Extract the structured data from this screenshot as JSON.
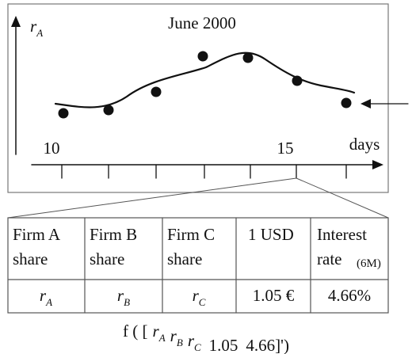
{
  "chart": {
    "title": "June 2000",
    "y_label": {
      "symbol": "r",
      "subscript": "A"
    },
    "x_labels": [
      "10",
      "15"
    ],
    "x_unit": "days"
  },
  "table": {
    "header": [
      [
        "Firm A",
        "share"
      ],
      [
        "Firm B",
        "share"
      ],
      [
        "Firm C",
        "share"
      ],
      [
        "1 USD"
      ],
      [
        "Interest",
        "rate",
        "(6M)"
      ]
    ],
    "row": [
      {
        "symbol": "r",
        "subscript": "A"
      },
      {
        "symbol": "r",
        "subscript": "B"
      },
      {
        "symbol": "r",
        "subscript": "C"
      },
      "1.05 €",
      "4.66%"
    ]
  },
  "formula": {
    "open": "f ( [",
    "terms": [
      {
        "symbol": "r",
        "subscript": "A"
      },
      {
        "symbol": "r",
        "subscript": "B"
      },
      {
        "symbol": "r",
        "subscript": "C"
      }
    ],
    "numbers": [
      "1.05",
      "4.66"
    ],
    "close": "]')"
  }
}
